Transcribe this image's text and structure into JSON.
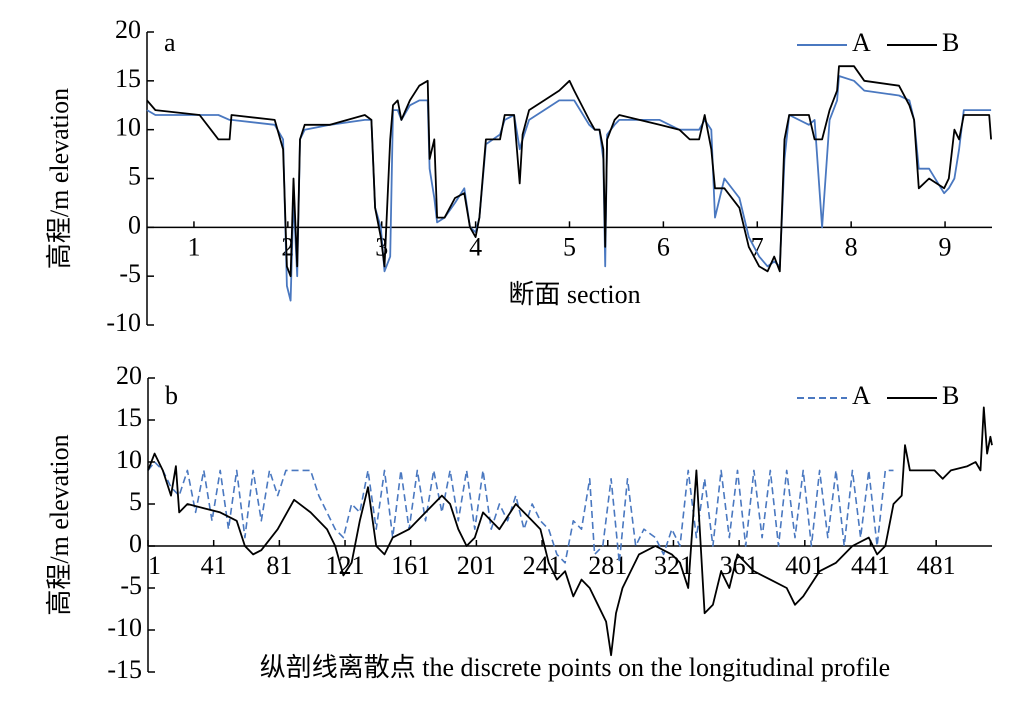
{
  "chart_data": [
    {
      "type": "line",
      "panel_label": "a",
      "y_label": "高程/m elevation",
      "x_label": "断面 section",
      "xlim": [
        0.5,
        9.5
      ],
      "xticks": [
        1,
        2,
        3,
        4,
        5,
        6,
        7,
        8,
        9
      ],
      "ylim": [
        -10,
        20
      ],
      "yticks": [
        -10,
        -5,
        0,
        5,
        10,
        15,
        20
      ],
      "legend": "upper right",
      "series": [
        {
          "name": "A",
          "color": "#4a78c0",
          "dashed": false,
          "x": [
            0.5,
            0.59,
            1.06,
            1.26,
            1.38,
            1.4,
            1.86,
            1.95,
            1.99,
            2.03,
            2.06,
            2.1,
            2.13,
            2.18,
            2.45,
            2.82,
            2.89,
            2.93,
            2.99,
            3.03,
            3.09,
            3.12,
            3.17,
            3.21,
            3.3,
            3.4,
            3.49,
            3.51,
            3.56,
            3.59,
            3.67,
            3.78,
            3.88,
            3.94,
            4.0,
            4.04,
            4.11,
            4.26,
            4.31,
            4.41,
            4.47,
            4.5,
            4.57,
            4.73,
            4.89,
            5.0,
            5.05,
            5.21,
            5.27,
            5.32,
            5.36,
            5.38,
            5.4,
            5.48,
            5.53,
            5.96,
            6.17,
            6.28,
            6.38,
            6.44,
            6.51,
            6.55,
            6.65,
            6.81,
            6.91,
            7.02,
            7.11,
            7.18,
            7.24,
            7.29,
            7.34,
            7.55,
            7.61,
            7.69,
            7.77,
            7.85,
            7.87,
            8.03,
            8.14,
            8.51,
            8.62,
            8.67,
            8.72,
            8.83,
            8.99,
            9.04,
            9.1,
            9.15,
            9.2,
            9.47,
            9.49
          ],
          "values": [
            12,
            11.5,
            11.5,
            11.5,
            11,
            11,
            10.5,
            9,
            -6,
            -7.5,
            3,
            -5,
            9,
            10,
            10.5,
            11,
            11,
            2,
            0,
            -4.5,
            -3,
            12,
            12,
            11,
            12.5,
            13,
            13,
            6,
            3,
            0.5,
            1,
            2.5,
            4,
            0,
            -0.5,
            1,
            8.5,
            9.5,
            11,
            11.5,
            8,
            9,
            11,
            12,
            13,
            13,
            13,
            10.5,
            10,
            10,
            7,
            -4,
            9.5,
            10.5,
            11,
            11,
            10,
            10,
            10,
            11,
            10,
            1,
            5,
            3,
            -1,
            -3,
            -4,
            -3.5,
            -4,
            7,
            11.5,
            10.5,
            11,
            0,
            11,
            13,
            15.5,
            15,
            14,
            13.5,
            13,
            11,
            6,
            6,
            3.5,
            4,
            5,
            8,
            12,
            12,
            12
          ]
        },
        {
          "name": "B",
          "color": "#000000",
          "dashed": false,
          "x": [
            0.5,
            0.59,
            1.06,
            1.26,
            1.38,
            1.4,
            1.86,
            1.95,
            1.99,
            2.03,
            2.06,
            2.1,
            2.13,
            2.18,
            2.45,
            2.82,
            2.89,
            2.93,
            2.99,
            3.03,
            3.09,
            3.12,
            3.17,
            3.21,
            3.3,
            3.4,
            3.49,
            3.51,
            3.56,
            3.59,
            3.67,
            3.78,
            3.88,
            3.94,
            4.0,
            4.04,
            4.11,
            4.26,
            4.31,
            4.41,
            4.47,
            4.5,
            4.57,
            4.73,
            4.89,
            5.0,
            5.05,
            5.21,
            5.27,
            5.32,
            5.36,
            5.38,
            5.4,
            5.48,
            5.53,
            5.96,
            6.17,
            6.28,
            6.38,
            6.44,
            6.51,
            6.55,
            6.65,
            6.81,
            6.91,
            7.02,
            7.11,
            7.18,
            7.24,
            7.29,
            7.34,
            7.55,
            7.61,
            7.69,
            7.77,
            7.85,
            7.87,
            8.03,
            8.14,
            8.51,
            8.62,
            8.67,
            8.72,
            8.83,
            8.99,
            9.04,
            9.1,
            9.15,
            9.2,
            9.47,
            9.49
          ],
          "values": [
            13,
            12,
            11.5,
            9,
            9,
            11.5,
            11,
            8,
            -4,
            -5,
            5,
            -4,
            9,
            10.5,
            10.5,
            11.5,
            11,
            2,
            -1,
            -4,
            9,
            12.5,
            13,
            11,
            13,
            14.5,
            15,
            7,
            9,
            1,
            1,
            3,
            3.5,
            0,
            -1,
            1,
            9,
            9,
            11.5,
            11.5,
            4.5,
            9.5,
            12,
            13,
            14,
            15,
            14,
            11,
            10,
            10,
            8,
            -2,
            9,
            11,
            11.5,
            10.5,
            10,
            9,
            9,
            11.5,
            8,
            4,
            4,
            2,
            -2,
            -4,
            -4.5,
            -3,
            -4.5,
            9,
            11.5,
            11.5,
            9,
            9,
            12,
            14,
            16.5,
            16.5,
            15,
            14.5,
            12.5,
            11,
            4,
            5,
            4,
            5,
            10,
            9,
            11.5,
            11.5,
            9
          ]
        }
      ]
    },
    {
      "type": "line",
      "panel_label": "b",
      "y_label": "高程/m elevation",
      "x_label": "纵剖线离散点 the discrete points on the longitudinal profile",
      "xlim": [
        1,
        515
      ],
      "xticks": [
        1,
        41,
        81,
        121,
        161,
        201,
        241,
        281,
        321,
        361,
        401,
        441,
        481
      ],
      "ylim": [
        -15,
        20
      ],
      "yticks": [
        -15,
        -10,
        -5,
        0,
        5,
        10,
        15,
        20
      ],
      "legend": "upper right",
      "series": [
        {
          "name": "A",
          "color": "#4a78c0",
          "dashed": true,
          "x": [
            1,
            5,
            10,
            15,
            20,
            25,
            30,
            35,
            40,
            45,
            50,
            55,
            60,
            65,
            70,
            75,
            80,
            85,
            90,
            95,
            100,
            105,
            110,
            115,
            120,
            125,
            130,
            135,
            140,
            145,
            150,
            155,
            160,
            165,
            170,
            175,
            180,
            185,
            190,
            195,
            200,
            205,
            210,
            215,
            220,
            225,
            230,
            235,
            240,
            245,
            250,
            255,
            260,
            265,
            270,
            273,
            278,
            283,
            288,
            293,
            298,
            303,
            310,
            315,
            320,
            325,
            330,
            335,
            340,
            345,
            350,
            355,
            360,
            365,
            370,
            375,
            380,
            385,
            390,
            395,
            400,
            405,
            410,
            415,
            420,
            425,
            430,
            435,
            440,
            445,
            450,
            455
          ],
          "values": [
            9,
            10,
            9,
            7,
            6,
            9,
            4,
            9,
            3,
            9,
            2,
            9,
            1,
            9,
            3,
            9,
            6,
            9,
            9,
            9,
            9,
            6,
            4,
            2,
            1,
            5,
            4,
            9,
            2,
            9,
            1,
            9,
            2,
            9,
            3,
            9,
            4,
            9,
            3,
            9,
            2,
            9,
            2,
            5,
            3,
            6,
            2,
            5,
            3,
            2,
            -1,
            -2,
            3,
            2,
            8,
            -1,
            0,
            8,
            -2,
            8,
            0,
            2,
            1,
            -1,
            2,
            0,
            9,
            1,
            8,
            0,
            9,
            1,
            9,
            0,
            9,
            1,
            9,
            0,
            9,
            1,
            9,
            0,
            9,
            1,
            9,
            0,
            9,
            1,
            9,
            0,
            9,
            9
          ]
        },
        {
          "name": "B",
          "color": "#000000",
          "dashed": false,
          "x": [
            1,
            5,
            10,
            15,
            18,
            20,
            25,
            35,
            45,
            55,
            60,
            65,
            70,
            80,
            90,
            100,
            110,
            115,
            120,
            125,
            130,
            135,
            140,
            145,
            150,
            160,
            170,
            180,
            185,
            190,
            195,
            200,
            205,
            215,
            225,
            235,
            240,
            245,
            250,
            255,
            260,
            265,
            270,
            275,
            280,
            283,
            286,
            290,
            300,
            310,
            320,
            325,
            330,
            335,
            340,
            345,
            350,
            355,
            360,
            370,
            380,
            390,
            395,
            400,
            410,
            420,
            430,
            440,
            445,
            450,
            455,
            460,
            462,
            465,
            480,
            485,
            490,
            500,
            505,
            508,
            510,
            512,
            514,
            515
          ],
          "values": [
            9,
            11,
            9,
            6,
            9.5,
            4,
            5,
            4.5,
            4,
            3,
            0,
            -1,
            -0.5,
            2,
            5.5,
            4,
            2,
            0,
            -3.5,
            -2,
            3,
            7,
            0,
            -1,
            1,
            2,
            4,
            6,
            5,
            2,
            0,
            1,
            4,
            2,
            5,
            3,
            2,
            -2,
            -4,
            -3,
            -6,
            -4,
            -5,
            -7,
            -9,
            -13,
            -8,
            -5,
            -1,
            0,
            -1,
            -2,
            -5,
            9,
            -8,
            -7,
            -3,
            -5,
            -1,
            -3,
            -4,
            -5,
            -7,
            -6,
            -3,
            -2,
            0,
            1,
            -1,
            0,
            5,
            6,
            12,
            9,
            9,
            8,
            9,
            9.5,
            10,
            9,
            16.5,
            11,
            13,
            12
          ]
        }
      ]
    }
  ]
}
